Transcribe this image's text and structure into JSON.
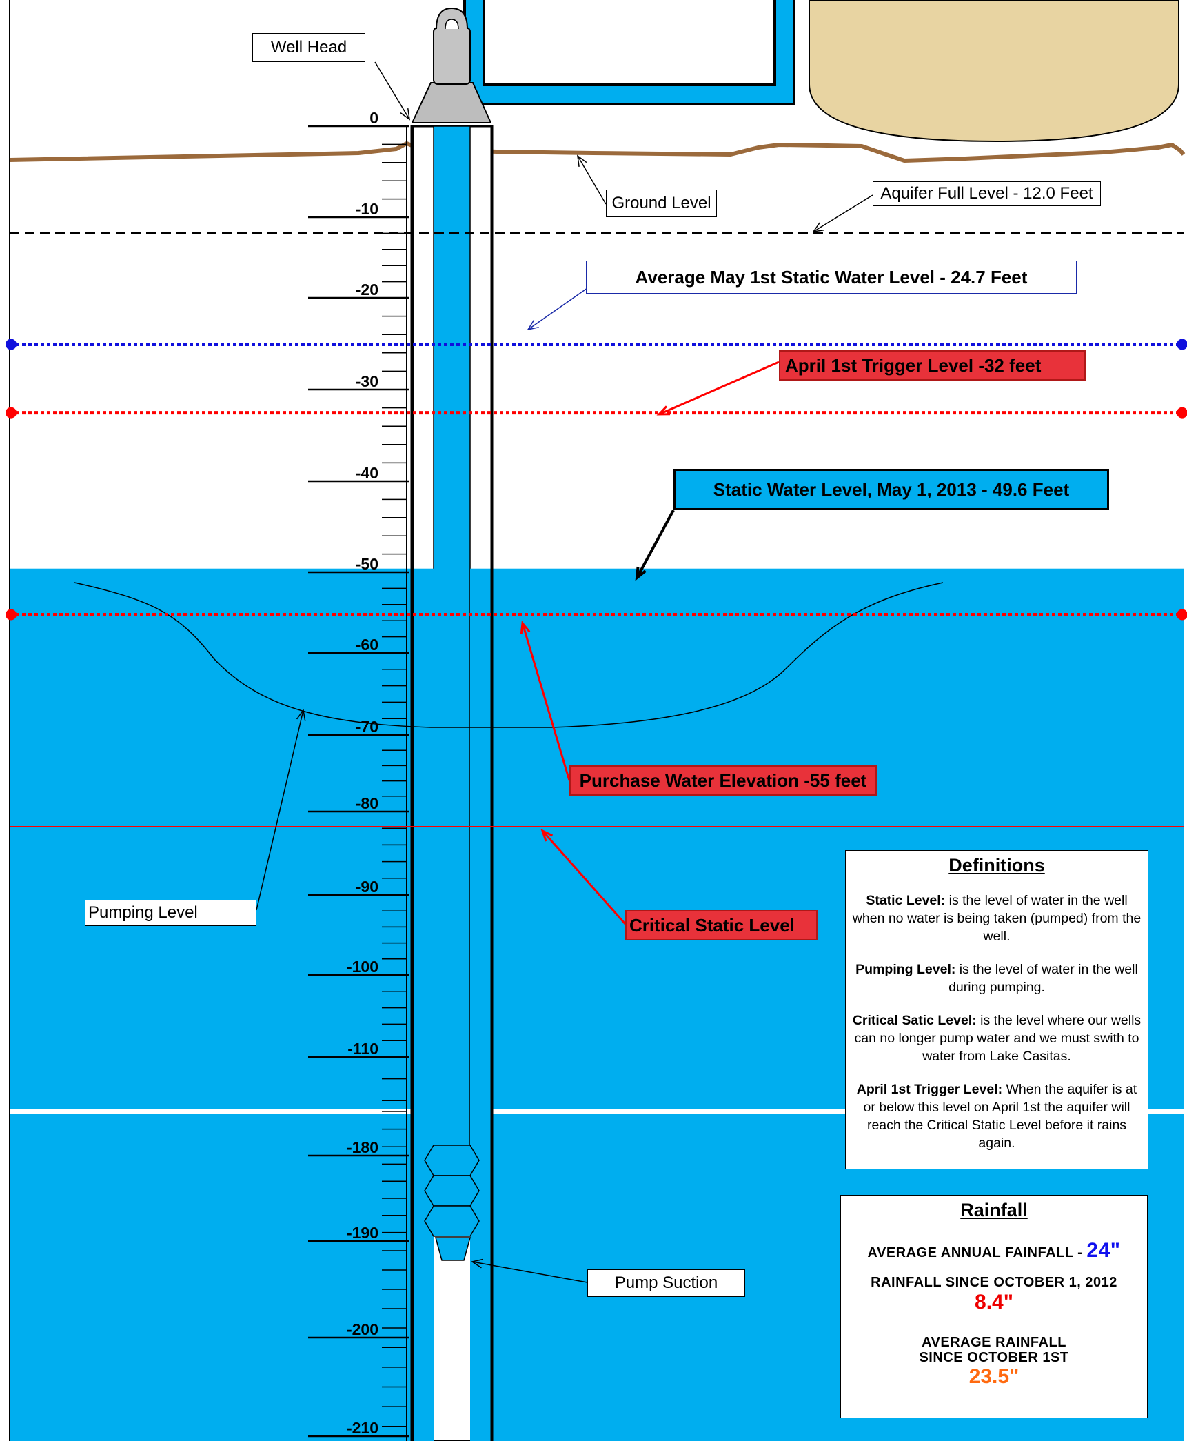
{
  "depth_scale": {
    "major_ticks": [
      {
        "depth": 0,
        "label": "0"
      },
      {
        "depth": -10,
        "label": "-10"
      },
      {
        "depth": -20,
        "label": "-20"
      },
      {
        "depth": -30,
        "label": "-30"
      },
      {
        "depth": -40,
        "label": "-40"
      },
      {
        "depth": -50,
        "label": "-50"
      },
      {
        "depth": -60,
        "label": "-60"
      },
      {
        "depth": -70,
        "label": "-70"
      },
      {
        "depth": -80,
        "label": "-80"
      },
      {
        "depth": -90,
        "label": "-90"
      },
      {
        "depth": -100,
        "label": "-100"
      },
      {
        "depth": -110,
        "label": "-110"
      },
      {
        "depth": -180,
        "label": "-180"
      },
      {
        "depth": -190,
        "label": "-190"
      },
      {
        "depth": -200,
        "label": "-200"
      },
      {
        "depth": -210,
        "label": "-210"
      }
    ],
    "scale_break": {
      "from": -115,
      "to": -175
    }
  },
  "levels": {
    "aquifer_full": -12.0,
    "average_may_static": -24.7,
    "april_trigger": -32,
    "static_may_2013": -49.6,
    "purchase_water": -55,
    "critical_static": -80
  },
  "labels": {
    "well_head": "Well Head",
    "ground_level": "Ground Level",
    "aquifer_full": "Aquifer Full Level - 12.0 Feet",
    "average_may_static": "Average May 1st Static Water Level - 24.7 Feet",
    "april_trigger": "April 1st Trigger Level -32 feet",
    "static_may_2013": "Static Water Level, May 1, 2013 - 49.6 Feet",
    "purchase_water": "Purchase Water Elevation -55 feet",
    "critical_static": "Critical Static Level",
    "pumping_level": "Pumping Level",
    "pump_suction": "Pump Suction"
  },
  "definitions": {
    "title": "Definitions",
    "items": [
      {
        "term": "Static Level:",
        "text": " is the level of water in the well when no water is being taken (pumped) from the well."
      },
      {
        "term": "Pumping Level:",
        "text": " is the level of water in the well during pumping."
      },
      {
        "term": "Critical Satic Level:",
        "text": " is the level where our wells can no longer pump water and we must swith to water from Lake Casitas."
      },
      {
        "term": "April 1st Trigger Level:",
        "text": " When the aquifer is at or below this level on April 1st the aquifer will reach the Critical Static Level before it rains again."
      }
    ]
  },
  "rainfall": {
    "title": "Rainfall",
    "average_annual_label": "AVERAGE ANNUAL FAINFALL - ",
    "average_annual_value": "24\"",
    "since_oct_label": "RAINFALL SINCE OCTOBER 1, 2012",
    "since_oct_value": "8.4\"",
    "avg_since_label_line1": "AVERAGE RAINFALL",
    "avg_since_label_line2": "SINCE OCTOBER 1ST",
    "avg_since_value": "23.5\""
  },
  "colors": {
    "water": "#00aeef",
    "ground": "#9b6a3c",
    "tank": "#e8d4a2",
    "average_line": "#1010dd",
    "red": "#ff0000",
    "rain_blue": "#1010ee",
    "rain_red": "#ee0000",
    "rain_orange": "#ff6a10"
  }
}
